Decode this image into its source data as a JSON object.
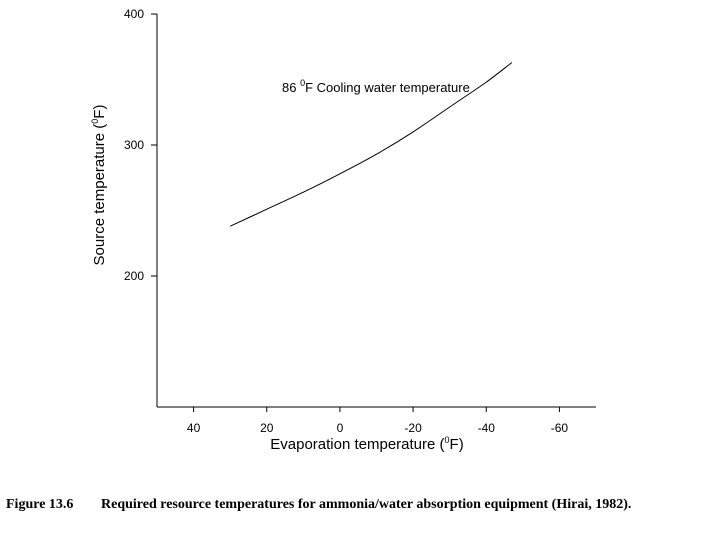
{
  "chart_data": {
    "type": "line",
    "title": "",
    "xlabel": "Evaporation temperature (",
    "xlabel_sup": "0",
    "xlabel_end": "F)",
    "ylabel": "Source temperature (",
    "ylabel_sup": "0",
    "ylabel_end": "F)",
    "xlim": [
      50,
      -70
    ],
    "ylim": [
      100,
      400
    ],
    "x_ticks": [
      40,
      20,
      0,
      -20,
      -40,
      -60
    ],
    "x_tick_labels": [
      "40",
      "20",
      "0",
      "-20",
      "-40",
      "-60"
    ],
    "y_ticks": [
      400,
      300,
      200
    ],
    "y_tick_labels": [
      "400",
      "300",
      "200"
    ],
    "grid": false,
    "series": [
      {
        "name": "86 °F Cooling water temperature",
        "x": [
          30,
          20,
          10,
          0,
          -10,
          -20,
          -30,
          -40,
          -47
        ],
        "y": [
          238,
          251,
          264,
          278,
          293,
          310,
          329,
          348,
          363
        ]
      }
    ],
    "annotation": {
      "text_pre": "86 ",
      "sup": "0",
      "text_post": "F Cooling water temperature"
    }
  },
  "caption": {
    "label": "Figure 13.6",
    "text": "Required resource temperatures for ammonia/water absorption equipment (Hirai, 1982)."
  }
}
